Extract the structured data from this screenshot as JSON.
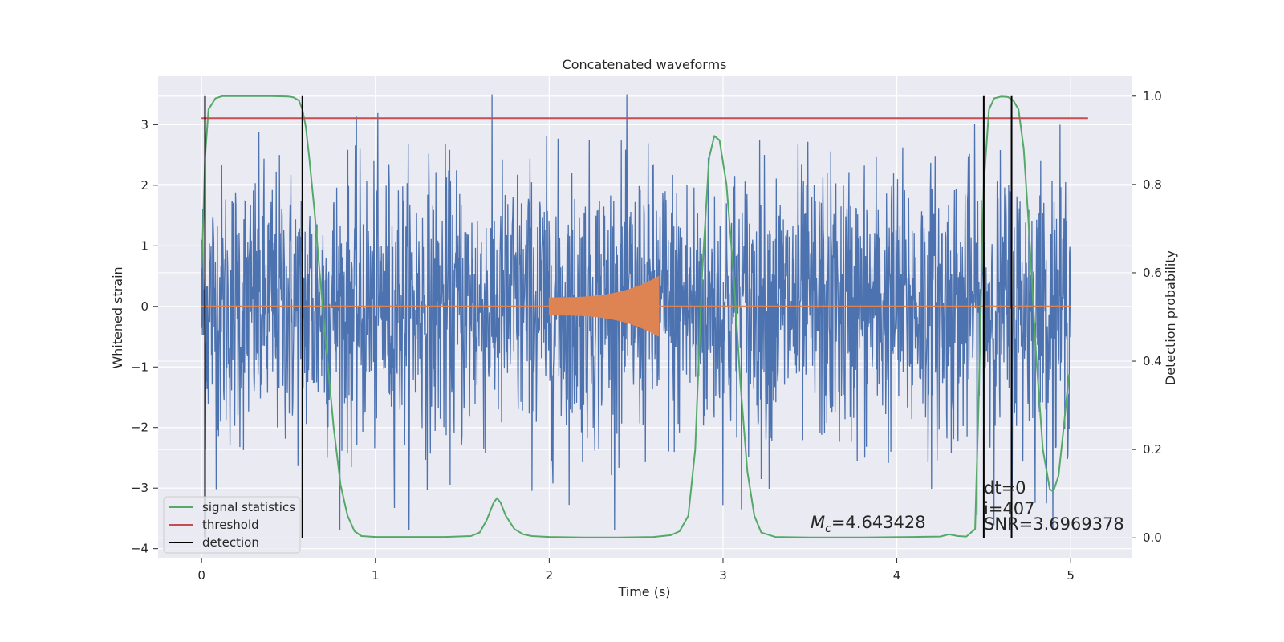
{
  "chart_data": {
    "type": "line",
    "title": "Concatenated waveforms",
    "xlabel": "Time (s)",
    "ylabel_left": "Whitened strain",
    "ylabel_right": "Detection probability",
    "xlim": [
      -0.25,
      5.35
    ],
    "ylim_left": [
      -4.15,
      3.8
    ],
    "ylim_right": [
      -0.045,
      1.045
    ],
    "xticks": [
      "0",
      "1",
      "2",
      "3",
      "4",
      "5"
    ],
    "yticks_left": [
      "3",
      "2",
      "1",
      "0",
      "−1",
      "−2",
      "−3",
      "−4"
    ],
    "yticks_right": [
      "1.0",
      "0.8",
      "0.6",
      "0.4",
      "0.2",
      "0.0"
    ],
    "grid": true,
    "legend_position": "lower-left",
    "legend": [
      "signal statistics",
      "threshold",
      "detection"
    ],
    "colors": {
      "background": "#eaeaf2",
      "noise": "#4c72b0",
      "injection": "#dd8452",
      "signal_statistics": "#55a868",
      "threshold": "#c44e52",
      "detection": "#000000"
    },
    "series": [
      {
        "name": "signal statistics",
        "axis": "right",
        "x": [
          0.0,
          0.01,
          0.02,
          0.04,
          0.08,
          0.12,
          0.2,
          0.3,
          0.4,
          0.5,
          0.53,
          0.56,
          0.58,
          0.6,
          0.62,
          0.65,
          0.68,
          0.72,
          0.76,
          0.8,
          0.84,
          0.88,
          0.92,
          1.0,
          1.2,
          1.4,
          1.55,
          1.6,
          1.64,
          1.68,
          1.7,
          1.72,
          1.75,
          1.8,
          1.85,
          1.9,
          2.0,
          2.2,
          2.4,
          2.6,
          2.7,
          2.75,
          2.8,
          2.84,
          2.88,
          2.92,
          2.95,
          2.98,
          3.02,
          3.06,
          3.1,
          3.14,
          3.18,
          3.22,
          3.3,
          3.5,
          3.8,
          4.1,
          4.25,
          4.3,
          4.35,
          4.4,
          4.45,
          4.47,
          4.5,
          4.53,
          4.56,
          4.6,
          4.64,
          4.67,
          4.7,
          4.73,
          4.76,
          4.8,
          4.84,
          4.88,
          4.9,
          4.93,
          4.96,
          4.99
        ],
        "values": [
          0.61,
          0.72,
          0.86,
          0.97,
          0.995,
          1.0,
          1.0,
          1.0,
          1.0,
          0.999,
          0.997,
          0.99,
          0.97,
          0.93,
          0.86,
          0.74,
          0.6,
          0.42,
          0.25,
          0.12,
          0.05,
          0.015,
          0.004,
          0.002,
          0.002,
          0.002,
          0.004,
          0.012,
          0.04,
          0.08,
          0.09,
          0.08,
          0.05,
          0.02,
          0.008,
          0.004,
          0.002,
          0.001,
          0.001,
          0.002,
          0.006,
          0.015,
          0.05,
          0.2,
          0.6,
          0.86,
          0.91,
          0.9,
          0.8,
          0.6,
          0.35,
          0.15,
          0.05,
          0.012,
          0.002,
          0.001,
          0.001,
          0.002,
          0.003,
          0.008,
          0.004,
          0.003,
          0.02,
          0.3,
          0.8,
          0.97,
          0.995,
          0.999,
          0.998,
          0.99,
          0.97,
          0.88,
          0.7,
          0.42,
          0.2,
          0.11,
          0.105,
          0.14,
          0.25,
          0.37
        ]
      },
      {
        "name": "threshold",
        "axis": "right",
        "x": [
          0.0,
          5.1
        ],
        "values": [
          0.95,
          0.95
        ]
      }
    ],
    "detections_x": [
      0.02,
      0.58,
      4.5,
      4.66
    ],
    "noise_x_range": [
      0.0,
      5.0
    ],
    "injection": {
      "x_range": [
        2.0,
        2.63
      ],
      "amplitude_start": 0.15,
      "amplitude_end": 0.5
    },
    "annotations": {
      "mc_symbol": "M",
      "mc_subscript": "c",
      "mc_value": "=4.643428",
      "dt": "dt=0",
      "i": "i=407",
      "snr": "SNR=3.6969378"
    }
  }
}
